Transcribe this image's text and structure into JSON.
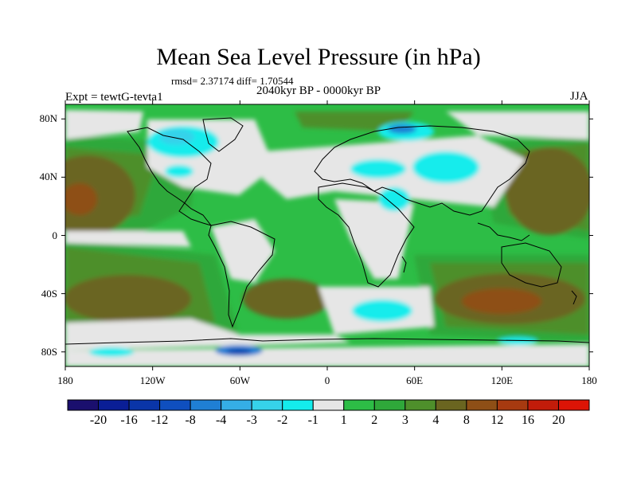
{
  "title": "Mean Sea Level Pressure (in hPa)",
  "stats": "rmsd= 2.37174 diff= 1.70544",
  "period": "2040kyr BP - 0000kyr BP",
  "experiment": "Expt = tewtG-tevta1",
  "season": "JJA",
  "axes": {
    "lat_labels": [
      "80N",
      "40N",
      "0",
      "40S",
      "80S"
    ],
    "lat_values": [
      80,
      40,
      0,
      -40,
      -80
    ],
    "lon_labels": [
      "180",
      "120W",
      "60W",
      "0",
      "60E",
      "120E",
      "180"
    ],
    "lon_values": [
      -180,
      -120,
      -60,
      0,
      60,
      120,
      180
    ],
    "lon_range": [
      -180,
      180
    ],
    "lat_range": [
      -90,
      90
    ]
  },
  "colorbar": {
    "labels": [
      "-20",
      "-16",
      "-12",
      "-8",
      "-4",
      "-3",
      "-2",
      "-1",
      "1",
      "2",
      "3",
      "4",
      "8",
      "12",
      "16",
      "20"
    ],
    "colors": [
      "#1a0f6e",
      "#0a1e96",
      "#0a35a8",
      "#0f4fbf",
      "#1f7fd4",
      "#35aee6",
      "#36d2ea",
      "#14ecec",
      "#e6e6e6",
      "#2dbd46",
      "#2fa83a",
      "#4e8f2b",
      "#6a6520",
      "#8e4f16",
      "#a73a10",
      "#c21c0a",
      "#dc1406"
    ]
  },
  "regions": [
    {
      "name": "tropics-land-light",
      "color": "#e6e6e6"
    },
    {
      "name": "pacific-high",
      "color": "#6a6520"
    },
    {
      "name": "atlantic-low",
      "color": "#36d2ea"
    }
  ]
}
